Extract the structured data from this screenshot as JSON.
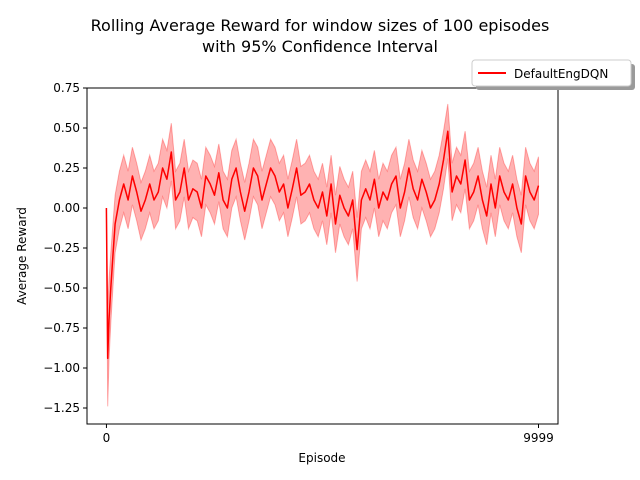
{
  "chart_data": {
    "type": "line",
    "title_line1": "Rolling Average Reward for window sizes of 100 episodes",
    "title_line2": "with 95% Confidence Interval",
    "xlabel": "Episode",
    "ylabel": "Average Reward",
    "xlim": [
      -450,
      10450
    ],
    "ylim": [
      -1.35,
      0.75
    ],
    "x_ticks": [
      0,
      9999
    ],
    "x_tick_labels": [
      "0",
      "9999"
    ],
    "y_ticks": [
      -1.25,
      -1.0,
      -0.75,
      -0.5,
      -0.25,
      0.0,
      0.25,
      0.5,
      0.75
    ],
    "y_tick_labels": [
      "−1.25",
      "−1.00",
      "−0.75",
      "−0.50",
      "−0.25",
      "0.00",
      "0.25",
      "0.50",
      "0.75"
    ],
    "grid": false,
    "legend_position": "upper-right, outside plot area",
    "series": [
      {
        "name": "DefaultEngDQN",
        "color": "#ff0000",
        "band_color": "#ff0000",
        "band_opacity": 0.3,
        "x": [
          0,
          30,
          60,
          100,
          150,
          200,
          300,
          400,
          500,
          600,
          700,
          800,
          900,
          1000,
          1100,
          1200,
          1300,
          1400,
          1500,
          1600,
          1700,
          1800,
          1900,
          2000,
          2100,
          2200,
          2300,
          2400,
          2500,
          2600,
          2700,
          2800,
          2900,
          3000,
          3100,
          3200,
          3300,
          3400,
          3500,
          3600,
          3700,
          3800,
          3900,
          4000,
          4100,
          4200,
          4300,
          4400,
          4500,
          4600,
          4700,
          4800,
          4900,
          5000,
          5100,
          5200,
          5300,
          5400,
          5500,
          5600,
          5700,
          5800,
          5900,
          6000,
          6100,
          6200,
          6300,
          6400,
          6500,
          6600,
          6700,
          6800,
          6900,
          7000,
          7100,
          7200,
          7300,
          7400,
          7500,
          7600,
          7700,
          7800,
          7900,
          8000,
          8100,
          8200,
          8300,
          8400,
          8500,
          8600,
          8700,
          8800,
          8900,
          9000,
          9100,
          9200,
          9300,
          9400,
          9500,
          9600,
          9700,
          9800,
          9900,
          9999
        ],
        "y": [
          0.0,
          -0.94,
          -0.7,
          -0.5,
          -0.3,
          -0.1,
          0.05,
          0.15,
          0.05,
          0.2,
          0.1,
          -0.02,
          0.05,
          0.15,
          0.05,
          0.1,
          0.25,
          0.18,
          0.35,
          0.05,
          0.1,
          0.25,
          0.05,
          0.12,
          0.1,
          0.0,
          0.2,
          0.15,
          0.08,
          0.22,
          0.05,
          0.0,
          0.18,
          0.25,
          0.1,
          -0.02,
          0.1,
          0.25,
          0.2,
          0.05,
          0.15,
          0.25,
          0.2,
          0.1,
          0.15,
          0.0,
          0.12,
          0.25,
          0.08,
          0.1,
          0.15,
          0.05,
          0.0,
          0.1,
          -0.05,
          0.15,
          -0.1,
          0.08,
          0.0,
          -0.05,
          0.05,
          -0.26,
          0.05,
          0.12,
          0.05,
          0.18,
          0.0,
          0.1,
          0.05,
          0.15,
          0.2,
          0.0,
          0.1,
          0.25,
          0.12,
          0.05,
          0.18,
          0.1,
          0.0,
          0.05,
          0.15,
          0.3,
          0.48,
          0.1,
          0.2,
          0.15,
          0.3,
          0.05,
          0.1,
          0.2,
          0.05,
          -0.05,
          0.15,
          0.0,
          0.2,
          0.1,
          0.05,
          0.15,
          0.0,
          -0.1,
          0.2,
          0.1,
          0.05,
          0.14
        ],
        "ci_half_width": [
          0.0,
          0.3,
          0.25,
          0.22,
          0.2,
          0.18,
          0.18,
          0.18,
          0.18,
          0.18,
          0.18,
          0.18,
          0.18,
          0.18,
          0.18,
          0.18,
          0.18,
          0.18,
          0.18,
          0.18,
          0.18,
          0.18,
          0.18,
          0.18,
          0.18,
          0.18,
          0.18,
          0.18,
          0.18,
          0.18,
          0.18,
          0.18,
          0.18,
          0.18,
          0.18,
          0.18,
          0.18,
          0.18,
          0.18,
          0.18,
          0.18,
          0.18,
          0.18,
          0.18,
          0.18,
          0.18,
          0.18,
          0.18,
          0.18,
          0.18,
          0.18,
          0.18,
          0.18,
          0.18,
          0.18,
          0.18,
          0.18,
          0.18,
          0.18,
          0.18,
          0.18,
          0.2,
          0.18,
          0.18,
          0.18,
          0.18,
          0.18,
          0.18,
          0.18,
          0.18,
          0.18,
          0.18,
          0.18,
          0.18,
          0.18,
          0.18,
          0.18,
          0.18,
          0.18,
          0.18,
          0.18,
          0.18,
          0.17,
          0.18,
          0.18,
          0.18,
          0.18,
          0.18,
          0.18,
          0.18,
          0.18,
          0.18,
          0.18,
          0.18,
          0.18,
          0.18,
          0.18,
          0.18,
          0.18,
          0.18,
          0.18,
          0.18,
          0.18,
          0.18
        ]
      }
    ]
  }
}
